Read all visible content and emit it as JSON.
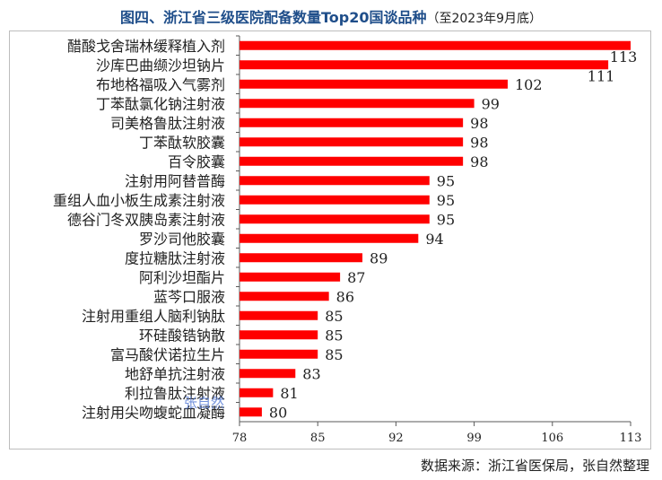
{
  "chart_data": {
    "type": "bar",
    "orientation": "horizontal",
    "title": "图四、浙江省三级医院配备数量Top20国谈品种",
    "subtitle": "（至2023年9月底）",
    "categories": [
      "醋酸戈舍瑞林缓释植入剂",
      "沙库巴曲缬沙坦钠片",
      "布地格福吸入气雾剂",
      "丁苯酞氯化钠注射液",
      "司美格鲁肽注射液",
      "丁苯酞软胶囊",
      "百令胶囊",
      "注射用阿替普酶",
      "重组人血小板生成素注射液",
      "德谷门冬双胰岛素注射液",
      "罗沙司他胶囊",
      "度拉糖肽注射液",
      "阿利沙坦酯片",
      "蓝芩口服液",
      "注射用重组人脑利钠肽",
      "环硅酸锆钠散",
      "富马酸伏诺拉生片",
      "地舒单抗注射液",
      "利拉鲁肽注射液",
      "注射用尖吻蝮蛇血凝酶"
    ],
    "values": [
      113,
      111,
      102,
      99,
      98,
      98,
      98,
      95,
      95,
      95,
      94,
      89,
      87,
      86,
      85,
      85,
      85,
      83,
      81,
      80
    ],
    "value_labels": [
      "113",
      "111",
      "102",
      "99",
      "98",
      "98",
      "98",
      "95",
      "95",
      "95",
      "94",
      "89",
      "87",
      "86",
      "85",
      "85",
      "85",
      "83",
      "81",
      "80"
    ],
    "xlim": [
      78,
      113
    ],
    "xticks": [
      78,
      85,
      92,
      99,
      106,
      113
    ],
    "bar_color": "#ff0000",
    "xlabel": "",
    "ylabel": "",
    "grid": false,
    "legend": "none"
  },
  "watermark": "张自然",
  "source": "数据来源：浙江省医保局，张自然整理"
}
